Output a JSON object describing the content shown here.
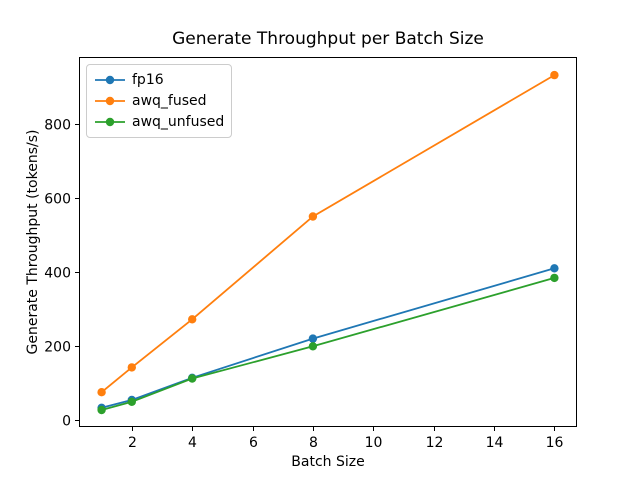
{
  "chart_data": {
    "type": "line",
    "title": "Generate Throughput per Batch Size",
    "xlabel": "Batch Size",
    "ylabel": "Generate Throughput (tokens/s)",
    "x": [
      1,
      2,
      4,
      8,
      16
    ],
    "series": [
      {
        "name": "fp16",
        "color": "#1f77b4",
        "values": [
          33,
          54,
          114,
          220,
          410
        ]
      },
      {
        "name": "awq_fused",
        "color": "#ff7f0e",
        "values": [
          75,
          142,
          272,
          550,
          932
        ]
      },
      {
        "name": "awq_unfused",
        "color": "#2ca02c",
        "values": [
          27,
          49,
          112,
          199,
          384
        ]
      }
    ],
    "x_ticks": [
      2,
      4,
      6,
      8,
      10,
      12,
      14,
      16
    ],
    "y_ticks": [
      0,
      200,
      400,
      600,
      800
    ],
    "xlim": [
      0.25,
      16.75
    ],
    "ylim": [
      -19,
      981
    ],
    "legend_position": "upper left",
    "grid": false,
    "background": "#ffffff",
    "marker": "circle",
    "line_width": 1.8,
    "marker_radius": 4.2
  }
}
